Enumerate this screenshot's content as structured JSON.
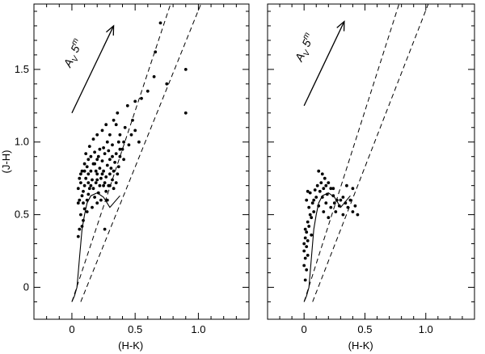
{
  "chart_data": [
    {
      "type": "scatter",
      "xlabel": "(H-K)",
      "ylabel": "(J-H)",
      "xlim": [
        -0.3,
        1.4
      ],
      "ylim": [
        -0.22,
        1.95
      ],
      "xticks": [
        "0",
        "0.5",
        "1.0"
      ],
      "yticks": [
        "0",
        "0.5",
        "1.0",
        "1.5"
      ],
      "reddening_vector": {
        "label": "A",
        "sub": "V",
        "value": "5",
        "unit": "m",
        "from": [
          0.0,
          1.2
        ],
        "to": [
          0.33,
          1.8
        ]
      },
      "reddening_band_lines": [
        {
          "from": [
            0.0,
            -0.1
          ],
          "to": [
            0.78,
            1.95
          ]
        },
        {
          "from": [
            0.07,
            -0.1
          ],
          "to": [
            1.02,
            1.95
          ]
        }
      ],
      "intrinsic_locus": [
        [
          0.0,
          -0.1
        ],
        [
          0.02,
          -0.06
        ],
        [
          0.04,
          0.0
        ],
        [
          0.05,
          0.1
        ],
        [
          0.06,
          0.2
        ],
        [
          0.07,
          0.3
        ],
        [
          0.08,
          0.4
        ],
        [
          0.1,
          0.5
        ],
        [
          0.12,
          0.58
        ],
        [
          0.15,
          0.63
        ],
        [
          0.2,
          0.65
        ],
        [
          0.25,
          0.62
        ],
        [
          0.3,
          0.55
        ],
        [
          0.33,
          0.58
        ],
        [
          0.38,
          0.63
        ]
      ],
      "points": [
        [
          0.05,
          0.35
        ],
        [
          0.06,
          0.4
        ],
        [
          0.08,
          0.42
        ],
        [
          0.07,
          0.5
        ],
        [
          0.09,
          0.46
        ],
        [
          0.1,
          0.54
        ],
        [
          0.05,
          0.58
        ],
        [
          0.06,
          0.6
        ],
        [
          0.08,
          0.63
        ],
        [
          0.05,
          0.68
        ],
        [
          0.07,
          0.72
        ],
        [
          0.09,
          0.66
        ],
        [
          0.1,
          0.7
        ],
        [
          0.12,
          0.6
        ],
        [
          0.13,
          0.64
        ],
        [
          0.11,
          0.75
        ],
        [
          0.13,
          0.78
        ],
        [
          0.12,
          0.83
        ],
        [
          0.15,
          0.7
        ],
        [
          0.16,
          0.74
        ],
        [
          0.15,
          0.8
        ],
        [
          0.17,
          0.68
        ],
        [
          0.18,
          0.62
        ],
        [
          0.19,
          0.72
        ],
        [
          0.2,
          0.78
        ],
        [
          0.18,
          0.85
        ],
        [
          0.2,
          0.88
        ],
        [
          0.21,
          0.65
        ],
        [
          0.22,
          0.7
        ],
        [
          0.23,
          0.75
        ],
        [
          0.22,
          0.82
        ],
        [
          0.24,
          0.87
        ],
        [
          0.25,
          0.8
        ],
        [
          0.26,
          0.72
        ],
        [
          0.27,
          0.76
        ],
        [
          0.28,
          0.84
        ],
        [
          0.26,
          0.92
        ],
        [
          0.29,
          0.7
        ],
        [
          0.3,
          0.78
        ],
        [
          0.31,
          0.82
        ],
        [
          0.3,
          0.88
        ],
        [
          0.32,
          0.74
        ],
        [
          0.33,
          0.8
        ],
        [
          0.34,
          0.86
        ],
        [
          0.35,
          0.92
        ],
        [
          0.36,
          0.78
        ],
        [
          0.37,
          0.83
        ],
        [
          0.38,
          0.9
        ],
        [
          0.4,
          0.95
        ],
        [
          0.41,
          1.0
        ],
        [
          0.38,
          1.05
        ],
        [
          0.42,
          1.1
        ],
        [
          0.35,
          1.12
        ],
        [
          0.3,
          1.05
        ],
        [
          0.28,
          1.0
        ],
        [
          0.25,
          0.96
        ],
        [
          0.22,
          0.95
        ],
        [
          0.18,
          0.93
        ],
        [
          0.15,
          0.9
        ],
        [
          0.13,
          0.88
        ],
        [
          0.1,
          0.85
        ],
        [
          0.08,
          0.8
        ],
        [
          0.06,
          0.75
        ],
        [
          0.11,
          0.92
        ],
        [
          0.14,
          0.97
        ],
        [
          0.17,
          1.02
        ],
        [
          0.2,
          1.05
        ],
        [
          0.24,
          1.08
        ],
        [
          0.27,
          1.12
        ],
        [
          0.33,
          1.15
        ],
        [
          0.36,
          1.2
        ],
        [
          0.44,
          1.25
        ],
        [
          0.5,
          1.28
        ],
        [
          0.47,
          1.05
        ],
        [
          0.5,
          1.08
        ],
        [
          0.55,
          1.3
        ],
        [
          0.53,
          1.0
        ],
        [
          0.6,
          1.35
        ],
        [
          0.65,
          1.45
        ],
        [
          0.66,
          1.62
        ],
        [
          0.7,
          1.82
        ],
        [
          0.75,
          1.4
        ],
        [
          0.9,
          1.5
        ],
        [
          0.9,
          1.2
        ],
        [
          0.2,
          0.58
        ],
        [
          0.23,
          0.6
        ],
        [
          0.27,
          0.66
        ],
        [
          0.16,
          0.55
        ],
        [
          0.12,
          0.52
        ],
        [
          0.09,
          0.58
        ],
        [
          0.14,
          0.68
        ],
        [
          0.19,
          0.8
        ],
        [
          0.24,
          0.78
        ],
        [
          0.29,
          0.94
        ],
        [
          0.32,
          0.98
        ],
        [
          0.37,
          1.0
        ],
        [
          0.45,
          0.98
        ],
        [
          0.48,
          1.15
        ],
        [
          0.41,
          0.88
        ],
        [
          0.17,
          0.85
        ],
        [
          0.21,
          0.9
        ],
        [
          0.3,
          0.7
        ],
        [
          0.33,
          0.68
        ],
        [
          0.35,
          0.72
        ],
        [
          0.28,
          0.6
        ],
        [
          0.07,
          0.78
        ],
        [
          0.1,
          0.8
        ],
        [
          0.13,
          0.72
        ],
        [
          0.2,
          0.74
        ],
        [
          0.25,
          0.7
        ],
        [
          0.32,
          0.9
        ],
        [
          0.38,
          0.95
        ],
        [
          0.26,
          0.4
        ]
      ]
    },
    {
      "type": "scatter",
      "xlabel": "(H-K)",
      "ylabel": "",
      "xlim": [
        -0.3,
        1.4
      ],
      "ylim": [
        -0.22,
        1.95
      ],
      "xticks": [
        "0",
        "0.5",
        "1.0"
      ],
      "yticks": [],
      "reddening_vector": {
        "label": "A",
        "sub": "V",
        "value": "5",
        "unit": "m",
        "from": [
          0.0,
          1.25
        ],
        "to": [
          0.33,
          1.83
        ]
      },
      "reddening_band_lines": [
        {
          "from": [
            0.0,
            -0.1
          ],
          "to": [
            0.78,
            1.95
          ]
        },
        {
          "from": [
            0.07,
            -0.1
          ],
          "to": [
            1.02,
            1.95
          ]
        }
      ],
      "intrinsic_locus": [
        [
          0.0,
          -0.1
        ],
        [
          0.02,
          -0.06
        ],
        [
          0.04,
          0.0
        ],
        [
          0.05,
          0.1
        ],
        [
          0.06,
          0.2
        ],
        [
          0.07,
          0.3
        ],
        [
          0.08,
          0.4
        ],
        [
          0.1,
          0.5
        ],
        [
          0.12,
          0.58
        ],
        [
          0.15,
          0.63
        ],
        [
          0.2,
          0.65
        ],
        [
          0.25,
          0.62
        ],
        [
          0.3,
          0.55
        ],
        [
          0.33,
          0.58
        ],
        [
          0.38,
          0.63
        ]
      ],
      "points": [
        [
          0.0,
          0.3
        ],
        [
          0.01,
          0.34
        ],
        [
          0.02,
          0.28
        ],
        [
          0.0,
          0.25
        ],
        [
          0.02,
          0.38
        ],
        [
          0.03,
          0.32
        ],
        [
          0.01,
          0.2
        ],
        [
          0.03,
          0.22
        ],
        [
          0.0,
          0.15
        ],
        [
          0.02,
          0.12
        ],
        [
          0.01,
          0.05
        ],
        [
          0.03,
          0.45
        ],
        [
          0.05,
          0.5
        ],
        [
          0.04,
          0.55
        ],
        [
          0.06,
          0.48
        ],
        [
          0.08,
          0.52
        ],
        [
          0.07,
          0.58
        ],
        [
          0.1,
          0.62
        ],
        [
          0.09,
          0.67
        ],
        [
          0.11,
          0.7
        ],
        [
          0.13,
          0.66
        ],
        [
          0.14,
          0.72
        ],
        [
          0.15,
          0.62
        ],
        [
          0.16,
          0.68
        ],
        [
          0.17,
          0.75
        ],
        [
          0.18,
          0.7
        ],
        [
          0.19,
          0.64
        ],
        [
          0.2,
          0.72
        ],
        [
          0.15,
          0.78
        ],
        [
          0.12,
          0.8
        ],
        [
          0.22,
          0.68
        ],
        [
          0.24,
          0.63
        ],
        [
          0.25,
          0.58
        ],
        [
          0.27,
          0.6
        ],
        [
          0.29,
          0.56
        ],
        [
          0.3,
          0.6
        ],
        [
          0.32,
          0.62
        ],
        [
          0.34,
          0.58
        ],
        [
          0.36,
          0.55
        ],
        [
          0.38,
          0.6
        ],
        [
          0.4,
          0.52
        ],
        [
          0.42,
          0.56
        ],
        [
          0.44,
          0.5
        ],
        [
          0.4,
          0.68
        ],
        [
          0.35,
          0.7
        ],
        [
          0.02,
          0.6
        ],
        [
          0.03,
          0.66
        ],
        [
          0.05,
          0.65
        ],
        [
          0.08,
          0.6
        ],
        [
          0.12,
          0.56
        ],
        [
          0.18,
          0.58
        ],
        [
          0.22,
          0.55
        ],
        [
          0.2,
          0.48
        ],
        [
          0.26,
          0.52
        ],
        [
          0.32,
          0.5
        ],
        [
          0.01,
          0.4
        ],
        [
          0.04,
          0.42
        ],
        [
          0.06,
          0.36
        ],
        [
          0.16,
          0.52
        ],
        [
          0.24,
          0.68
        ]
      ]
    }
  ]
}
